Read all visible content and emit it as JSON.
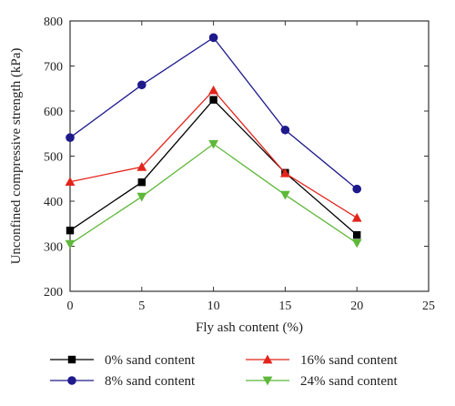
{
  "chart_data": {
    "type": "line",
    "xlabel": "Fly ash content (%)",
    "ylabel": "Unconfined compressive strength (kPa)",
    "xlim": [
      0,
      25
    ],
    "ylim": [
      200,
      800
    ],
    "x_ticks": [
      "0",
      "5",
      "10",
      "15",
      "20",
      "25"
    ],
    "y_ticks": [
      "200",
      "300",
      "400",
      "500",
      "600",
      "700",
      "800"
    ],
    "grid": false,
    "legend_position": "bottom",
    "x": [
      0,
      5,
      10,
      15,
      20
    ],
    "series": [
      {
        "name": "0% sand content",
        "color": "#000000",
        "marker": "square",
        "values": [
          335,
          442,
          625,
          463,
          325
        ]
      },
      {
        "name": "8% sand content",
        "color": "#1f1a8c",
        "marker": "circle",
        "values": [
          541,
          658,
          763,
          558,
          427
        ]
      },
      {
        "name": "16% sand content",
        "color": "#e3241b",
        "marker": "triangle-up",
        "values": [
          443,
          476,
          646,
          462,
          363
        ]
      },
      {
        "name": "24% sand content",
        "color": "#5fb83a",
        "marker": "triangle-down",
        "values": [
          305,
          410,
          527,
          414,
          307
        ]
      }
    ]
  }
}
